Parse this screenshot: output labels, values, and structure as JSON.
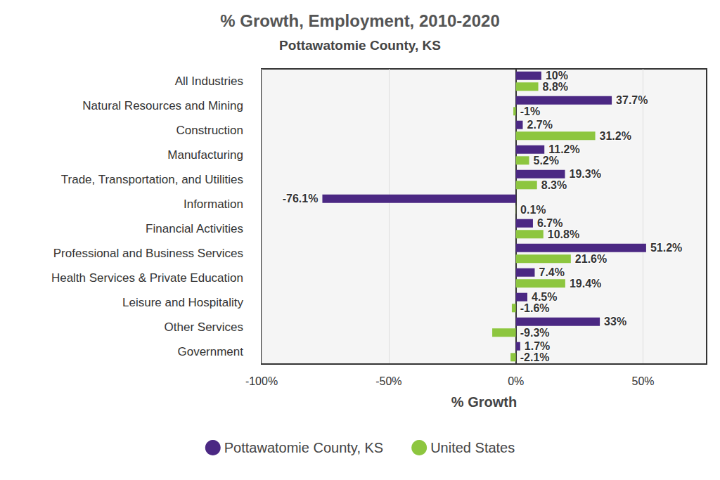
{
  "chart_data": {
    "type": "bar",
    "title": "% Growth, Employment, 2010-2020",
    "subtitle": "Pottawatomie County, KS",
    "x_label": "% Growth",
    "orientation": "horizontal",
    "categories": [
      "All Industries",
      "Natural Resources and Mining",
      "Construction",
      "Manufacturing",
      "Trade, Transportation, and Utilities",
      "Information",
      "Financial Activities",
      "Professional and Business Services",
      "Health Services & Private Education",
      "Leisure and Hospitality",
      "Other Services",
      "Government"
    ],
    "series": [
      {
        "name": "Pottawatomie County, KS",
        "color": "#4b2883",
        "values": [
          10,
          37.7,
          2.7,
          11.2,
          19.3,
          -76.1,
          6.7,
          51.2,
          7.4,
          4.5,
          33,
          1.7
        ],
        "value_labels": [
          "10%",
          "37.7%",
          "2.7%",
          "11.2%",
          "19.3%",
          "-76.1%",
          "6.7%",
          "51.2%",
          "7.4%",
          "4.5%",
          "33%",
          "1.7%"
        ]
      },
      {
        "name": "United States",
        "color": "#8dc63f",
        "values": [
          8.8,
          -1,
          31.2,
          5.2,
          8.3,
          0.1,
          10.8,
          21.6,
          19.4,
          -1.6,
          -9.3,
          -2.1
        ],
        "value_labels": [
          "8.8%",
          "-1%",
          "31.2%",
          "5.2%",
          "8.3%",
          "0.1%",
          "10.8%",
          "21.6%",
          "19.4%",
          "-1.6%",
          "-9.3%",
          "-2.1%"
        ]
      }
    ],
    "xlim": [
      -100,
      75
    ],
    "xticks": [
      {
        "value": -100,
        "label": "-100%"
      },
      {
        "value": -50,
        "label": "-50%"
      },
      {
        "value": 0,
        "label": "0%"
      },
      {
        "value": 50,
        "label": "50%"
      }
    ],
    "grid": true,
    "legend": "bottom",
    "data_labels": true
  }
}
